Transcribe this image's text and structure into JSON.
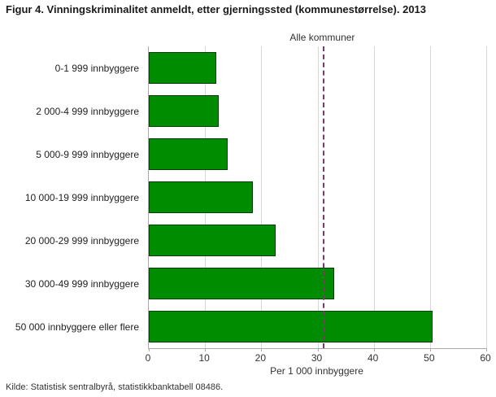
{
  "title": "Figur 4. Vinningskriminalitet anmeldt, etter gjerningssted (kommunestørrelse). 2013",
  "source": "Kilde: Statistisk sentralbyrå, statistikkbanktabell 08486.",
  "chart_data": {
    "type": "bar",
    "orientation": "horizontal",
    "title": "Figur 4. Vinningskriminalitet anmeldt, etter gjerningssted (kommunestørrelse). 2013",
    "categories": [
      "0-1 999 innbyggere",
      "2 000-4 999 innbyggere",
      "5 000-9 999 innbyggere",
      "10 000-19 999 innbyggere",
      "20 000-29 999 innbyggere",
      "30 000-49 999 innbyggere",
      "50 000 innbyggere eller flere"
    ],
    "values": [
      12,
      12.5,
      14,
      18.5,
      22.5,
      33,
      50.5
    ],
    "xlabel": "Per 1 000 innbyggere",
    "ylabel": "",
    "xlim": [
      0,
      60
    ],
    "xticks": [
      0,
      10,
      20,
      30,
      40,
      50,
      60
    ],
    "grid": true,
    "legend": "none",
    "reference_line": {
      "label": "Alle kommuner",
      "value": 31
    },
    "colors": {
      "bar_fill": "#008c00",
      "bar_border": "#0b3d0b",
      "reference_line": "#7d3c64",
      "gridline": "#d6d6d6",
      "axis": "#a9a9a9"
    }
  }
}
